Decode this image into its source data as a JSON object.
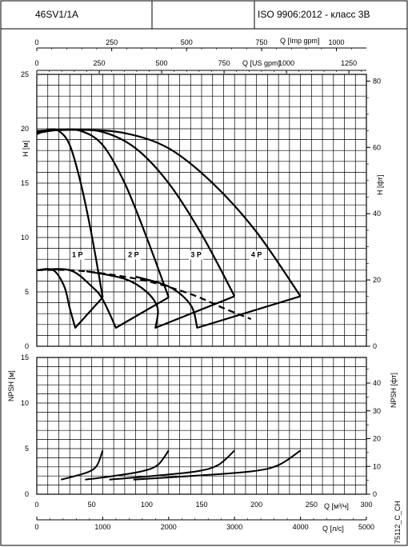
{
  "header": {
    "model": "46SV1/1A",
    "standard": "ISO 9906:2012 - класс 3B"
  },
  "chart_data": [
    {
      "type": "line",
      "panel": "head",
      "x_axis_label": "Q [м³/ч]",
      "xlim": [
        0,
        300
      ],
      "ylim": [
        0,
        25
      ],
      "ylabel": "H [м]",
      "ylabel_right": "H [фт]",
      "grid": true,
      "y_ticks": [
        "0",
        "5",
        "10",
        "15",
        "20",
        "25"
      ],
      "y_ticks_right": [
        "0",
        "20",
        "40",
        "60",
        "80"
      ],
      "top_scales": [
        {
          "label": "Q [Imp gpm]",
          "ticks": [
            "0",
            "250",
            "500",
            "750",
            "1000"
          ],
          "max": 1100
        },
        {
          "label": "Q [US gpm]",
          "ticks": [
            "0",
            "250",
            "500",
            "750",
            "1000",
            "1250"
          ],
          "max": 1320
        }
      ],
      "curve_labels": [
        "1 P",
        "2 P",
        "3 P",
        "4 P"
      ],
      "series": [
        {
          "label": "1 P",
          "style": "solid",
          "points": [
            [
              0,
              19.5
            ],
            [
              10,
              19.9
            ],
            [
              20,
              19.8
            ],
            [
              30,
              18.5
            ],
            [
              40,
              15.0
            ],
            [
              50,
              10.2
            ],
            [
              60,
              4.5
            ]
          ]
        },
        {
          "label": "2 P",
          "style": "solid",
          "points": [
            [
              0,
              19.6
            ],
            [
              20,
              19.9
            ],
            [
              40,
              19.8
            ],
            [
              60,
              18.5
            ],
            [
              80,
              15.0
            ],
            [
              100,
              10.0
            ],
            [
              120,
              4.5
            ]
          ]
        },
        {
          "label": "3 P",
          "style": "solid",
          "points": [
            [
              0,
              19.8
            ],
            [
              30,
              19.9
            ],
            [
              60,
              19.7
            ],
            [
              90,
              18.2
            ],
            [
              120,
              15.0
            ],
            [
              150,
              10.3
            ],
            [
              180,
              4.6
            ]
          ]
        },
        {
          "label": "4 P",
          "style": "solid",
          "points": [
            [
              0,
              19.8
            ],
            [
              40,
              19.9
            ],
            [
              80,
              19.6
            ],
            [
              120,
              18.2
            ],
            [
              160,
              15.0
            ],
            [
              200,
              10.5
            ],
            [
              240,
              4.6
            ]
          ]
        },
        {
          "label": "efficiency",
          "style": "dashed",
          "points": [
            [
              0,
              7.0
            ],
            [
              30,
              7.0
            ],
            [
              60,
              6.7
            ],
            [
              100,
              6.0
            ],
            [
              140,
              4.8
            ],
            [
              170,
              3.5
            ],
            [
              195,
              2.5
            ]
          ]
        },
        {
          "label": "min 1 P",
          "style": "solid",
          "points": [
            [
              0,
              7.0
            ],
            [
              15,
              7.0
            ],
            [
              25,
              5.5
            ],
            [
              30,
              3.5
            ],
            [
              35,
              1.7
            ],
            [
              60,
              4.5
            ]
          ]
        },
        {
          "label": "min 2 P",
          "style": "solid",
          "points": [
            [
              0,
              7.0
            ],
            [
              30,
              7.0
            ],
            [
              50,
              5.5
            ],
            [
              60,
              4.3
            ],
            [
              72,
              1.7
            ],
            [
              120,
              4.5
            ]
          ]
        },
        {
          "label": "min 3 P",
          "style": "solid",
          "points": [
            [
              45,
              6.9
            ],
            [
              80,
              6.2
            ],
            [
              100,
              5.0
            ],
            [
              110,
              3.5
            ],
            [
              108,
              1.7
            ],
            [
              180,
              4.6
            ]
          ]
        },
        {
          "label": "min 4 P",
          "style": "solid",
          "points": [
            [
              90,
              6.4
            ],
            [
              120,
              5.5
            ],
            [
              140,
              3.8
            ],
            [
              146,
              1.7
            ],
            [
              240,
              4.6
            ]
          ]
        }
      ]
    },
    {
      "type": "line",
      "panel": "npsh",
      "xlabel": "Q [м³/ч]",
      "x_ticks": [
        "0",
        "50",
        "100",
        "150",
        "200",
        "250",
        "300"
      ],
      "xlim": [
        0,
        300
      ],
      "ylim": [
        0,
        15
      ],
      "ylabel": "NPSH [м]",
      "ylabel_right": "NPSH [фт]",
      "grid": true,
      "y_ticks": [
        "0",
        "5",
        "10",
        "15"
      ],
      "y_ticks_right": [
        "0",
        "10",
        "20",
        "30",
        "40"
      ],
      "bottom_scale": {
        "label": "Q [л/с]",
        "ticks": [
          "0",
          "1000",
          "2000",
          "3000",
          "4000",
          "5000"
        ],
        "max": 5000
      },
      "series": [
        {
          "label": "1 P",
          "points": [
            [
              22,
              1.6
            ],
            [
              35,
              2.0
            ],
            [
              48,
              2.5
            ],
            [
              55,
              3.2
            ],
            [
              60,
              4.8
            ]
          ]
        },
        {
          "label": "2 P",
          "points": [
            [
              44,
              1.6
            ],
            [
              70,
              2.0
            ],
            [
              95,
              2.5
            ],
            [
              110,
              3.2
            ],
            [
              120,
              4.8
            ]
          ]
        },
        {
          "label": "3 P",
          "points": [
            [
              66,
              1.6
            ],
            [
              105,
              2.0
            ],
            [
              145,
              2.5
            ],
            [
              165,
              3.2
            ],
            [
              180,
              4.8
            ]
          ]
        },
        {
          "label": "4 P",
          "points": [
            [
              88,
              1.6
            ],
            [
              140,
              2.0
            ],
            [
              195,
              2.5
            ],
            [
              220,
              3.2
            ],
            [
              240,
              4.8
            ]
          ]
        }
      ]
    }
  ],
  "side_code": "75112_C_CH"
}
